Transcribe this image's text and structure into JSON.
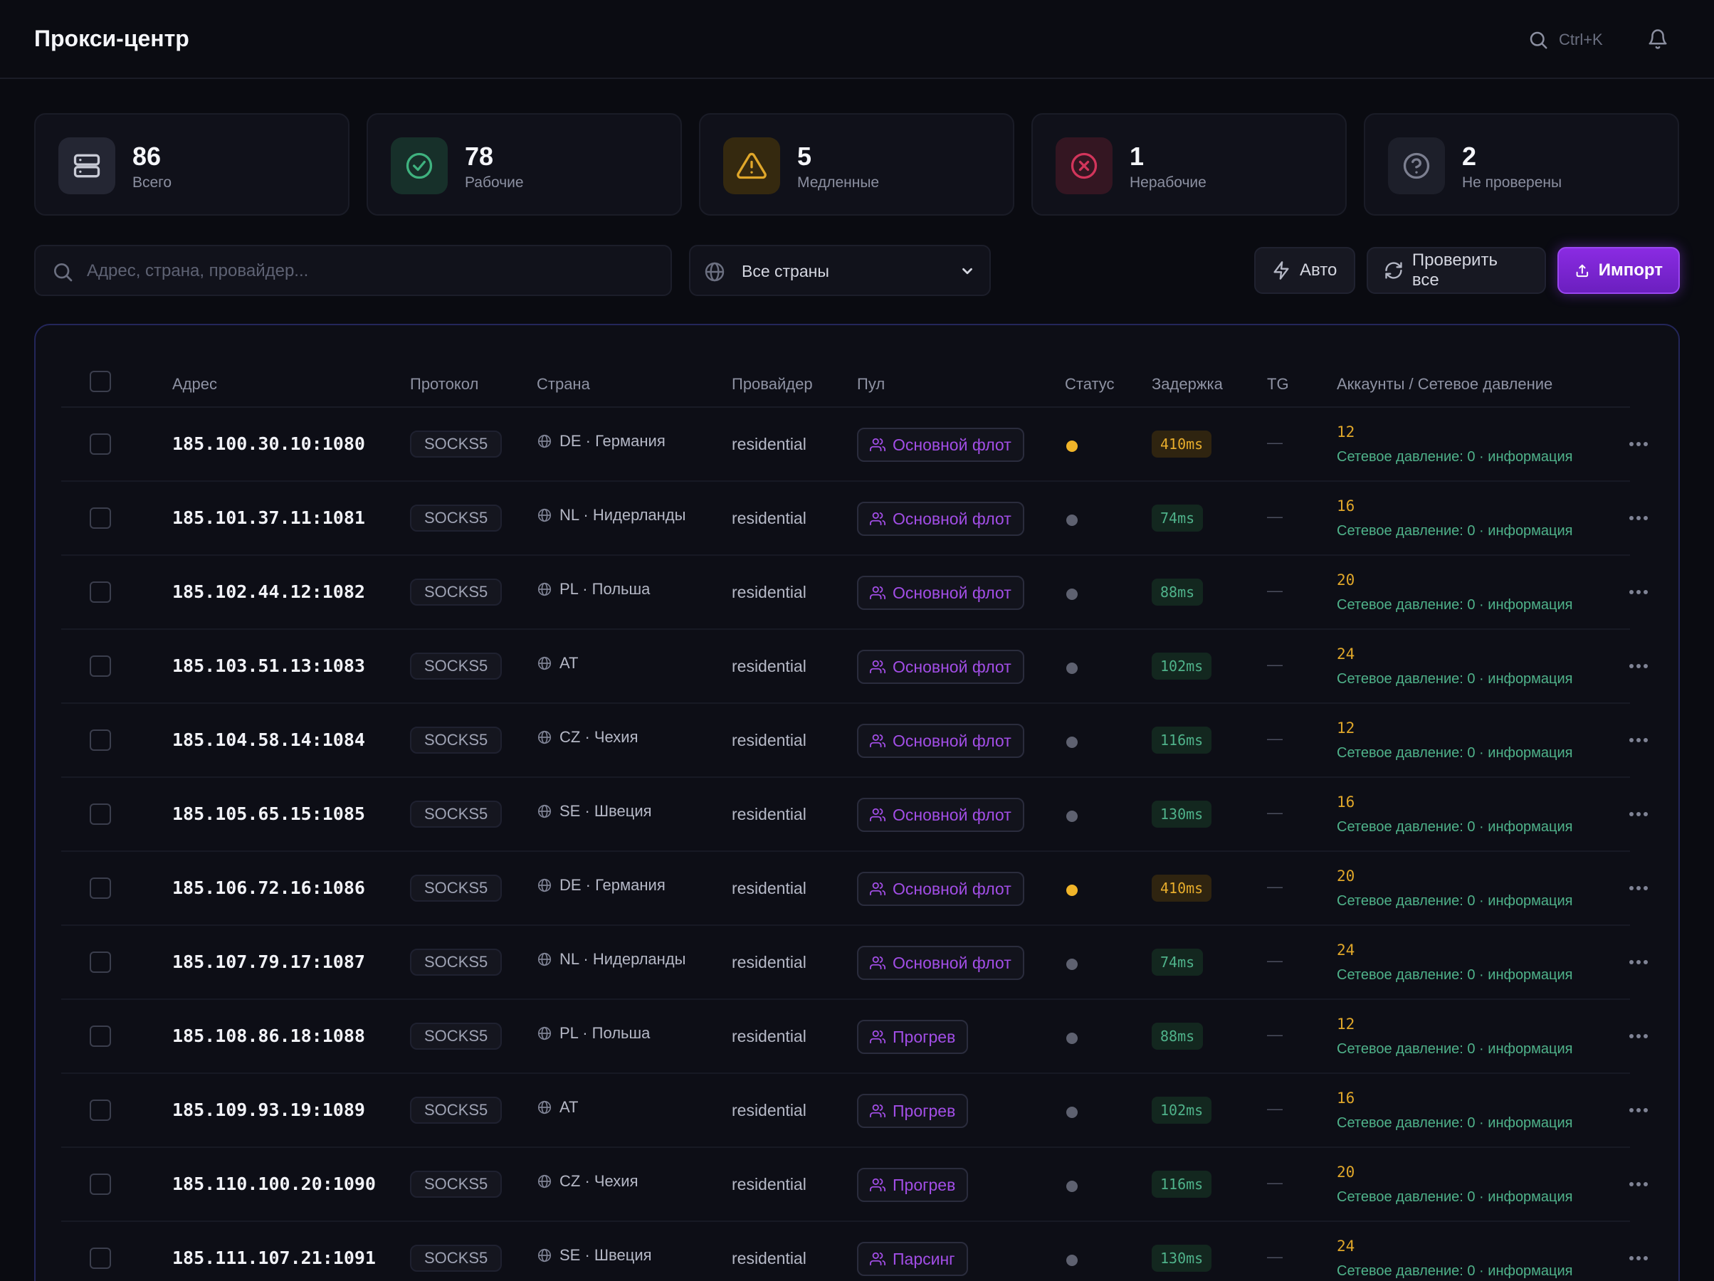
{
  "app": {
    "title": "Прокси-центр"
  },
  "header": {
    "search_shortcut": "Ctrl+K",
    "search_icon": "search-icon",
    "bell_icon": "bell-icon"
  },
  "stats": [
    {
      "value": "86",
      "label": "Всего",
      "icon": "server-icon",
      "color": "#c9cbd6",
      "bg": "#242633"
    },
    {
      "value": "78",
      "label": "Рабочие",
      "icon": "check-circle-icon",
      "color": "#3fb27f",
      "bg": "#17302a"
    },
    {
      "value": "5",
      "label": "Медленные",
      "icon": "warning-icon",
      "color": "#e0a72a",
      "bg": "#35290f"
    },
    {
      "value": "1",
      "label": "Нерабочие",
      "icon": "x-circle-icon",
      "color": "#d2355b",
      "bg": "#341622"
    },
    {
      "value": "2",
      "label": "Не проверены",
      "icon": "help-circle-icon",
      "color": "#7c7f90",
      "bg": "#1d1f2a"
    }
  ],
  "filters": {
    "search_placeholder": "Адрес, страна, провайдер...",
    "search_value": "",
    "country_selected": "Все страны"
  },
  "actions": {
    "auto_label": "Авто",
    "check_all_label": "Проверить все",
    "import_label": "Импорт"
  },
  "table": {
    "columns": {
      "address": "Адрес",
      "protocol": "Протокол",
      "country": "Страна",
      "provider": "Провайдер",
      "pool": "Пул",
      "status": "Статус",
      "latency": "Задержка",
      "tg": "TG",
      "accounts": "Аккаунты / Сетевое давление"
    },
    "rows": [
      {
        "address": "185.100.30.10:1080",
        "protocol": "SOCKS5",
        "country": "DE · Германия",
        "provider": "residential",
        "pool": "Основной флот",
        "status": "slow",
        "latency": "410ms",
        "tg": "—",
        "accounts": "12",
        "pressure": "Сетевое давление: 0 · информация"
      },
      {
        "address": "185.101.37.11:1081",
        "protocol": "SOCKS5",
        "country": "NL · Нидерланды",
        "provider": "residential",
        "pool": "Основной флот",
        "status": "ok",
        "latency": "74ms",
        "tg": "—",
        "accounts": "16",
        "pressure": "Сетевое давление: 0 · информация"
      },
      {
        "address": "185.102.44.12:1082",
        "protocol": "SOCKS5",
        "country": "PL · Польша",
        "provider": "residential",
        "pool": "Основной флот",
        "status": "ok",
        "latency": "88ms",
        "tg": "—",
        "accounts": "20",
        "pressure": "Сетевое давление: 0 · информация"
      },
      {
        "address": "185.103.51.13:1083",
        "protocol": "SOCKS5",
        "country": "AT",
        "provider": "residential",
        "pool": "Основной флот",
        "status": "ok",
        "latency": "102ms",
        "tg": "—",
        "accounts": "24",
        "pressure": "Сетевое давление: 0 · информация"
      },
      {
        "address": "185.104.58.14:1084",
        "protocol": "SOCKS5",
        "country": "CZ · Чехия",
        "provider": "residential",
        "pool": "Основной флот",
        "status": "ok",
        "latency": "116ms",
        "tg": "—",
        "accounts": "12",
        "pressure": "Сетевое давление: 0 · информация"
      },
      {
        "address": "185.105.65.15:1085",
        "protocol": "SOCKS5",
        "country": "SE · Швеция",
        "provider": "residential",
        "pool": "Основной флот",
        "status": "ok",
        "latency": "130ms",
        "tg": "—",
        "accounts": "16",
        "pressure": "Сетевое давление: 0 · информация"
      },
      {
        "address": "185.106.72.16:1086",
        "protocol": "SOCKS5",
        "country": "DE · Германия",
        "provider": "residential",
        "pool": "Основной флот",
        "status": "slow",
        "latency": "410ms",
        "tg": "—",
        "accounts": "20",
        "pressure": "Сетевое давление: 0 · информация"
      },
      {
        "address": "185.107.79.17:1087",
        "protocol": "SOCKS5",
        "country": "NL · Нидерланды",
        "provider": "residential",
        "pool": "Основной флот",
        "status": "ok",
        "latency": "74ms",
        "tg": "—",
        "accounts": "24",
        "pressure": "Сетевое давление: 0 · информация"
      },
      {
        "address": "185.108.86.18:1088",
        "protocol": "SOCKS5",
        "country": "PL · Польша",
        "provider": "residential",
        "pool": "Прогрев",
        "status": "ok",
        "latency": "88ms",
        "tg": "—",
        "accounts": "12",
        "pressure": "Сетевое давление: 0 · информация"
      },
      {
        "address": "185.109.93.19:1089",
        "protocol": "SOCKS5",
        "country": "AT",
        "provider": "residential",
        "pool": "Прогрев",
        "status": "ok",
        "latency": "102ms",
        "tg": "—",
        "accounts": "16",
        "pressure": "Сетевое давление: 0 · информация"
      },
      {
        "address": "185.110.100.20:1090",
        "protocol": "SOCKS5",
        "country": "CZ · Чехия",
        "provider": "residential",
        "pool": "Прогрев",
        "status": "ok",
        "latency": "116ms",
        "tg": "—",
        "accounts": "20",
        "pressure": "Сетевое давление: 0 · информация"
      },
      {
        "address": "185.111.107.21:1091",
        "protocol": "SOCKS5",
        "country": "SE · Швеция",
        "provider": "residential",
        "pool": "Парсинг",
        "status": "ok",
        "latency": "130ms",
        "tg": "—",
        "accounts": "24",
        "pressure": "Сетевое давление: 0 · информация"
      }
    ]
  },
  "colors": {
    "accent": "#8a2be2",
    "status_ok": "#5e6170",
    "status_slow": "#f0b429",
    "latency_ok_bg": "#13271f",
    "latency_ok_fg": "#4fb28a",
    "latency_slow_bg": "#2f2410",
    "latency_slow_fg": "#e8ad2c"
  }
}
